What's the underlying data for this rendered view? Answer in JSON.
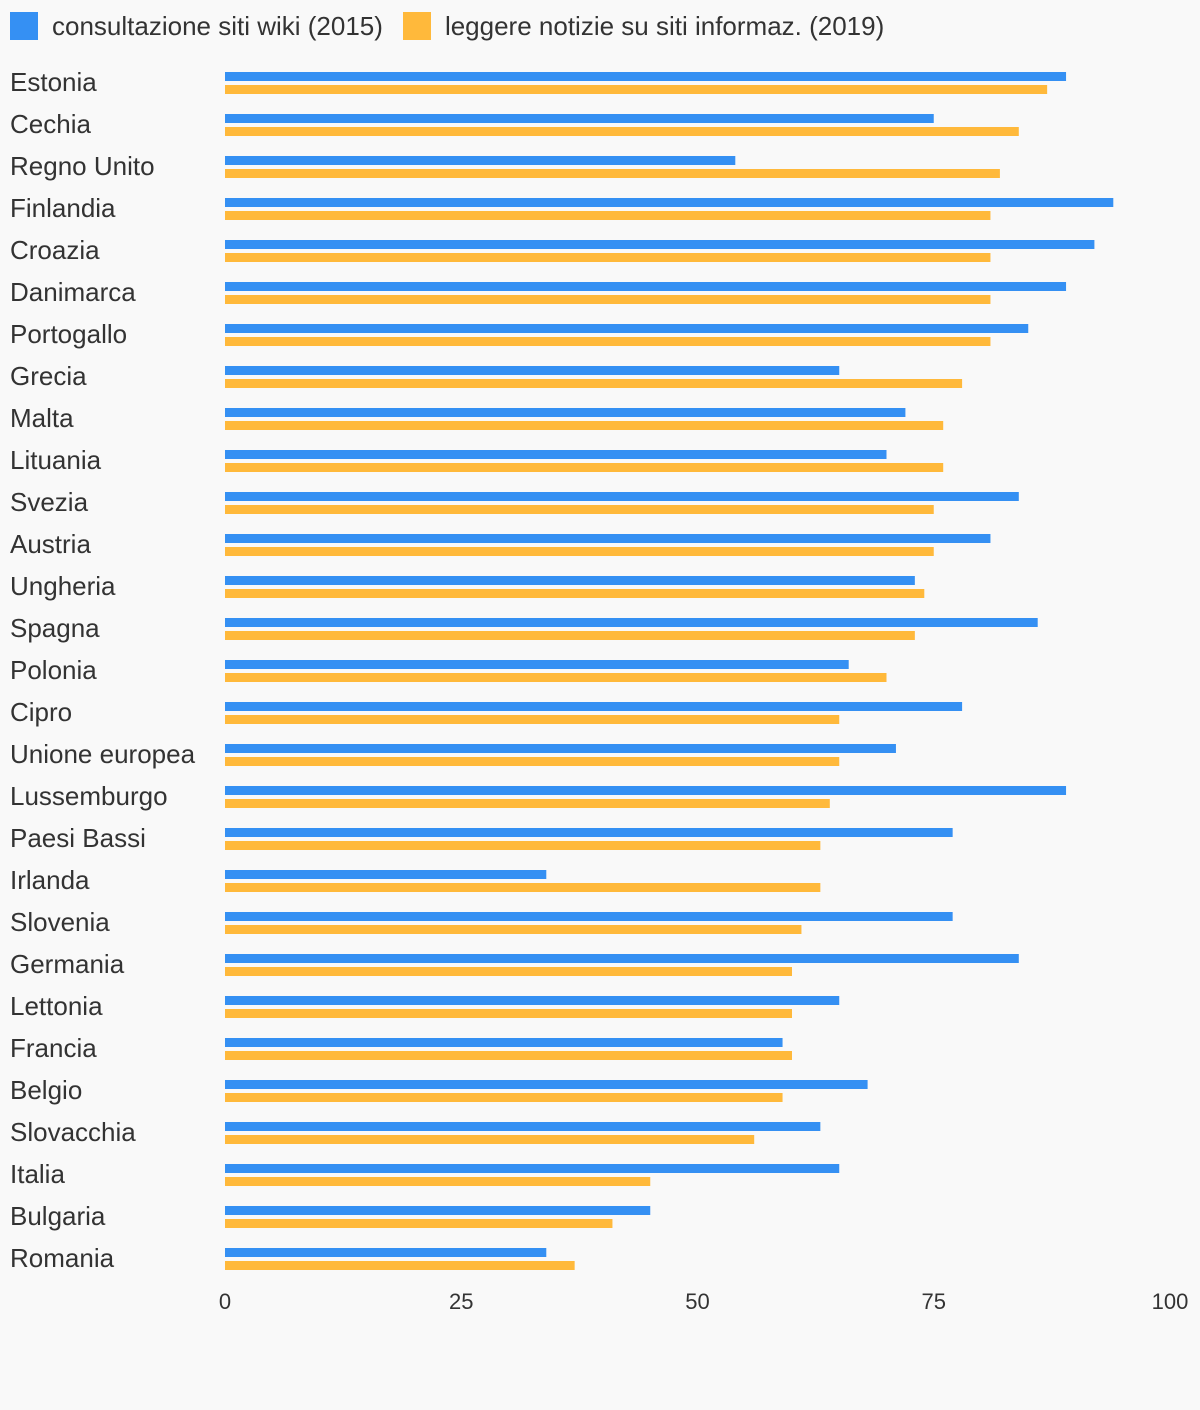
{
  "chart_data": {
    "type": "bar",
    "orientation": "horizontal",
    "categories": [
      "Estonia",
      "Cechia",
      "Regno Unito",
      "Finlandia",
      "Croazia",
      "Danimarca",
      "Portogallo",
      "Grecia",
      "Malta",
      "Lituania",
      "Svezia",
      "Austria",
      "Ungheria",
      "Spagna",
      "Polonia",
      "Cipro",
      "Unione europea",
      "Lussemburgo",
      "Paesi Bassi",
      "Irlanda",
      "Slovenia",
      "Germania",
      "Lettonia",
      "Francia",
      "Belgio",
      "Slovacchia",
      "Italia",
      "Bulgaria",
      "Romania"
    ],
    "series": [
      {
        "name": "consultazione siti wiki (2015)",
        "color": "#3590f3",
        "values": [
          89,
          75,
          54,
          94,
          92,
          89,
          85,
          65,
          72,
          70,
          84,
          81,
          73,
          86,
          66,
          78,
          71,
          89,
          77,
          34,
          77,
          84,
          65,
          59,
          68,
          63,
          65,
          45,
          34
        ]
      },
      {
        "name": "leggere notizie su siti informaz. (2019)",
        "color": "#ffb93b",
        "values": [
          87,
          84,
          82,
          81,
          81,
          81,
          81,
          78,
          76,
          76,
          75,
          75,
          74,
          73,
          70,
          65,
          65,
          64,
          63,
          63,
          61,
          60,
          60,
          60,
          59,
          56,
          45,
          41,
          37
        ]
      }
    ],
    "xlim": [
      0,
      100
    ],
    "xticks": [
      0,
      25,
      50,
      75,
      100
    ],
    "grid": false,
    "legend": "top-left",
    "title": "",
    "xlabel": "",
    "ylabel": ""
  }
}
